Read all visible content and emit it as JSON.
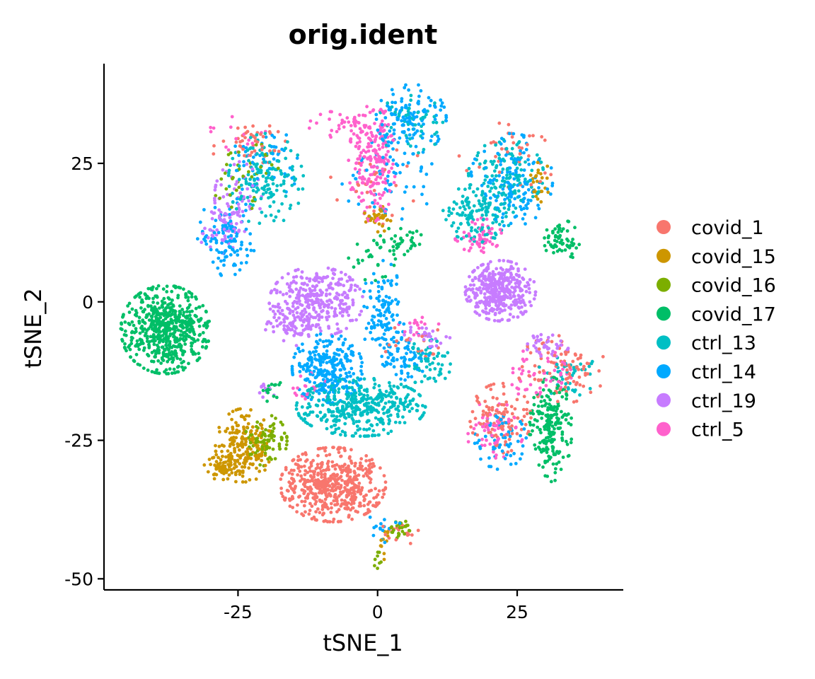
{
  "chart_data": {
    "type": "scatter",
    "title": "orig.ident",
    "xlabel": "tSNE_1",
    "ylabel": "tSNE_2",
    "xlim": [
      -49,
      44
    ],
    "ylim": [
      -52,
      43
    ],
    "xticks": [
      -25,
      0,
      25
    ],
    "yticks": [
      -50,
      -25,
      0,
      25
    ],
    "grid": false,
    "legend_position": "right",
    "series": [
      {
        "name": "covid_1",
        "color": "#F8766D",
        "clusters": [
          {
            "cx": -8,
            "cy": -33,
            "sx": 4.5,
            "sy": 3.2,
            "n": 520
          },
          {
            "cx": 22,
            "cy": -21,
            "sx": 2.6,
            "sy": 3.0,
            "n": 110
          },
          {
            "cx": 33,
            "cy": -12,
            "sx": 3.8,
            "sy": 3.0,
            "n": 90
          },
          {
            "cx": -23,
            "cy": 29,
            "sx": 3.5,
            "sy": 2.2,
            "n": 45
          },
          {
            "cx": 24,
            "cy": 27,
            "sx": 4.5,
            "sy": 3.0,
            "n": 35
          },
          {
            "cx": 0,
            "cy": 22,
            "sx": 4.0,
            "sy": 4.0,
            "n": 25
          },
          {
            "cx": 4,
            "cy": -42,
            "sx": 2.0,
            "sy": 1.0,
            "n": 18
          },
          {
            "cx": 6,
            "cy": -7,
            "sx": 3.0,
            "sy": 1.5,
            "n": 18
          }
        ]
      },
      {
        "name": "covid_15",
        "color": "#CD9600",
        "clusters": [
          {
            "cx": -24,
            "cy": -26,
            "sx": 2.4,
            "sy": 3.2,
            "n": 200
          },
          {
            "cx": -28,
            "cy": -30,
            "sx": 1.5,
            "sy": 1.0,
            "n": 50
          },
          {
            "cx": 0,
            "cy": 15,
            "sx": 1.2,
            "sy": 1.2,
            "n": 35
          },
          {
            "cx": 29,
            "cy": 21,
            "sx": 1.2,
            "sy": 2.0,
            "n": 25
          },
          {
            "cx": 1,
            "cy": -44,
            "sx": 0.6,
            "sy": 1.5,
            "n": 12
          }
        ]
      },
      {
        "name": "covid_16",
        "color": "#7CAE00",
        "clusters": [
          {
            "cx": -20,
            "cy": -25,
            "sx": 1.8,
            "sy": 2.2,
            "n": 90
          },
          {
            "cx": 4,
            "cy": -41,
            "sx": 1.2,
            "sy": 0.8,
            "n": 25
          },
          {
            "cx": -24,
            "cy": 23,
            "sx": 3.0,
            "sy": 3.0,
            "n": 35
          },
          {
            "cx": 0,
            "cy": -46,
            "sx": 0.5,
            "sy": 1.0,
            "n": 8
          }
        ]
      },
      {
        "name": "covid_17",
        "color": "#00BE67",
        "clusters": [
          {
            "cx": -38,
            "cy": -5,
            "sx": 3.8,
            "sy": 3.8,
            "n": 620
          },
          {
            "cx": 31,
            "cy": -23,
            "sx": 1.8,
            "sy": 4.5,
            "n": 200
          },
          {
            "cx": 33,
            "cy": 11,
            "sx": 1.5,
            "sy": 1.8,
            "n": 60
          },
          {
            "cx": 4,
            "cy": 11,
            "sx": 2.0,
            "sy": 1.2,
            "n": 35
          },
          {
            "cx": -1,
            "cy": 8,
            "sx": 2.0,
            "sy": 2.0,
            "n": 25
          },
          {
            "cx": -19,
            "cy": -16,
            "sx": 1.0,
            "sy": 1.0,
            "n": 15
          }
        ]
      },
      {
        "name": "ctrl_13",
        "color": "#00BFC4",
        "clusters": [
          {
            "cx": -3,
            "cy": -19,
            "sx": 5.5,
            "sy": 2.5,
            "n": 420
          },
          {
            "cx": -20,
            "cy": 22,
            "sx": 3.2,
            "sy": 4.0,
            "n": 150
          },
          {
            "cx": 18,
            "cy": 16,
            "sx": 3.0,
            "sy": 2.5,
            "n": 140
          },
          {
            "cx": 23,
            "cy": 23,
            "sx": 3.2,
            "sy": 3.0,
            "n": 110
          },
          {
            "cx": 9,
            "cy": -11,
            "sx": 2.0,
            "sy": 2.0,
            "n": 60
          },
          {
            "cx": 6,
            "cy": 32,
            "sx": 3.0,
            "sy": 2.5,
            "n": 50
          },
          {
            "cx": 34,
            "cy": -13,
            "sx": 2.5,
            "sy": 2.0,
            "n": 40
          }
        ]
      },
      {
        "name": "ctrl_14",
        "color": "#00A9FF",
        "clusters": [
          {
            "cx": -9,
            "cy": -12,
            "sx": 3.0,
            "sy": 3.0,
            "n": 260
          },
          {
            "cx": 6,
            "cy": 33,
            "sx": 3.0,
            "sy": 3.0,
            "n": 130
          },
          {
            "cx": 24,
            "cy": 22,
            "sx": 3.5,
            "sy": 4.0,
            "n": 140
          },
          {
            "cx": -27,
            "cy": 12,
            "sx": 2.5,
            "sy": 3.5,
            "n": 110
          },
          {
            "cx": 1,
            "cy": -2,
            "sx": 1.8,
            "sy": 4.5,
            "n": 120
          },
          {
            "cx": 6,
            "cy": -10,
            "sx": 2.5,
            "sy": 2.0,
            "n": 60
          },
          {
            "cx": 22,
            "cy": -25,
            "sx": 2.2,
            "sy": 2.5,
            "n": 60
          },
          {
            "cx": 2,
            "cy": 22,
            "sx": 4.0,
            "sy": 3.5,
            "n": 60
          },
          {
            "cx": -20,
            "cy": 25,
            "sx": 3.0,
            "sy": 3.0,
            "n": 50
          },
          {
            "cx": 1,
            "cy": -41,
            "sx": 1.5,
            "sy": 1.5,
            "n": 15
          }
        ]
      },
      {
        "name": "ctrl_19",
        "color": "#C77CFF",
        "clusters": [
          {
            "cx": -11,
            "cy": 0,
            "sx": 4.0,
            "sy": 3.0,
            "n": 330
          },
          {
            "cx": -16,
            "cy": -4,
            "sx": 2.0,
            "sy": 2.0,
            "n": 60
          },
          {
            "cx": 22,
            "cy": 2,
            "sx": 3.0,
            "sy": 2.6,
            "n": 400
          },
          {
            "cx": -25,
            "cy": 19,
            "sx": 2.0,
            "sy": 3.0,
            "n": 60
          },
          {
            "cx": -28,
            "cy": 13,
            "sx": 2.0,
            "sy": 2.0,
            "n": 50
          },
          {
            "cx": 30,
            "cy": -8,
            "sx": 2.0,
            "sy": 1.0,
            "n": 40
          },
          {
            "cx": 9,
            "cy": -6,
            "sx": 2.0,
            "sy": 1.0,
            "n": 25
          },
          {
            "cx": -20,
            "cy": -16,
            "sx": 0.8,
            "sy": 0.8,
            "n": 10
          }
        ]
      },
      {
        "name": "ctrl_5",
        "color": "#FF61CC",
        "clusters": [
          {
            "cx": -1,
            "cy": 25,
            "sx": 2.0,
            "sy": 5.0,
            "n": 200
          },
          {
            "cx": -4,
            "cy": 32,
            "sx": 4.0,
            "sy": 1.5,
            "n": 50
          },
          {
            "cx": 18,
            "cy": 12,
            "sx": 2.0,
            "sy": 1.5,
            "n": 60
          },
          {
            "cx": 21,
            "cy": -23,
            "sx": 2.5,
            "sy": 2.5,
            "n": 55
          },
          {
            "cx": 27,
            "cy": -13,
            "sx": 2.0,
            "sy": 2.0,
            "n": 30
          },
          {
            "cx": -12,
            "cy": -16,
            "sx": 1.5,
            "sy": 1.5,
            "n": 20
          },
          {
            "cx": -25,
            "cy": 30,
            "sx": 2.5,
            "sy": 2.0,
            "n": 20
          },
          {
            "cx": 8,
            "cy": -4,
            "sx": 2.0,
            "sy": 1.0,
            "n": 15
          },
          {
            "cx": 33,
            "cy": -12,
            "sx": 2.0,
            "sy": 2.0,
            "n": 20
          }
        ]
      }
    ]
  }
}
